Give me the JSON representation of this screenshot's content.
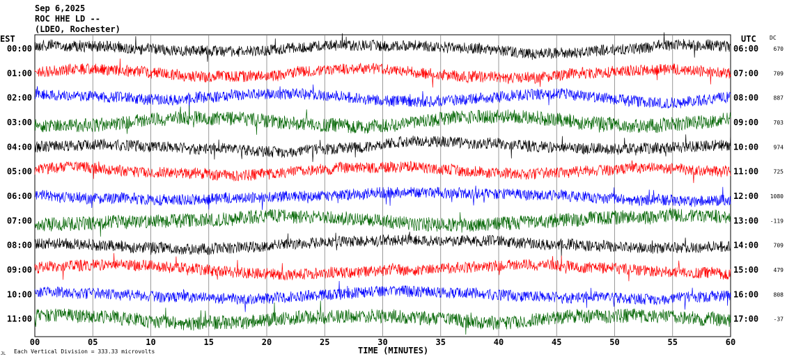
{
  "header": {
    "date": "Sep 6,2025",
    "station": "ROC HHE LD --",
    "network": "(LDEO, Rochester)"
  },
  "footer": {
    "division_note": "Each Vertical Division =  333.33 microvolts",
    "corner_mark": "JL"
  },
  "chart_data": {
    "type": "line",
    "subtype": "helicorder seismogram",
    "xlabel": "TIME (MINUTES)",
    "xlim": [
      0,
      60
    ],
    "x_ticks": [
      "00",
      "05",
      "10",
      "15",
      "20",
      "25",
      "30",
      "35",
      "40",
      "45",
      "50",
      "55",
      "60"
    ],
    "left_axis_title": "EST",
    "right_axis_title": "UTC",
    "dc_title": "DC",
    "grid": "vertical lines every 5 minutes",
    "trace_color_cycle": [
      "#000000",
      "#ff0000",
      "#0000ff",
      "#006400"
    ],
    "rows": [
      {
        "est": "00:00",
        "utc": "06:00",
        "dc": "670",
        "color": "#000000"
      },
      {
        "est": "01:00",
        "utc": "07:00",
        "dc": "709",
        "color": "#ff0000"
      },
      {
        "est": "02:00",
        "utc": "08:00",
        "dc": "887",
        "color": "#0000ff"
      },
      {
        "est": "03:00",
        "utc": "09:00",
        "dc": "703",
        "color": "#006400"
      },
      {
        "est": "04:00",
        "utc": "10:00",
        "dc": "974",
        "color": "#000000"
      },
      {
        "est": "05:00",
        "utc": "11:00",
        "dc": "725",
        "color": "#ff0000"
      },
      {
        "est": "06:00",
        "utc": "12:00",
        "dc": "1080",
        "color": "#0000ff"
      },
      {
        "est": "07:00",
        "utc": "13:00",
        "dc": "-119",
        "color": "#006400"
      },
      {
        "est": "08:00",
        "utc": "14:00",
        "dc": "709",
        "color": "#000000"
      },
      {
        "est": "09:00",
        "utc": "15:00",
        "dc": "479",
        "color": "#ff0000"
      },
      {
        "est": "10:00",
        "utc": "16:00",
        "dc": "808",
        "color": "#0000ff"
      },
      {
        "est": "11:00",
        "utc": "17:00",
        "dc": "-37",
        "color": "#006400"
      }
    ]
  }
}
